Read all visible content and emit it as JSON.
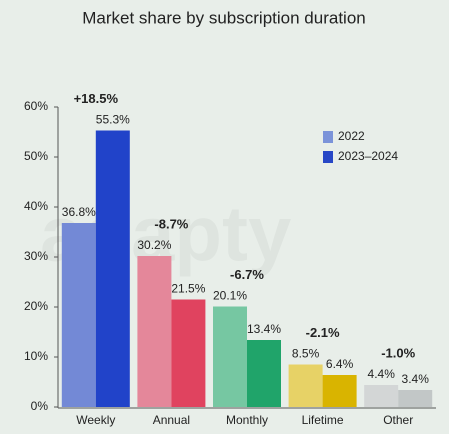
{
  "chart_data": {
    "type": "bar",
    "title": "Market share by subscription duration",
    "watermark": "adapty",
    "categories": [
      "Weekly",
      "Annual",
      "Monthly",
      "Lifetime",
      "Other"
    ],
    "series": [
      {
        "name": "2022",
        "color": "#7b93d9",
        "values": [
          36.8,
          30.2,
          20.1,
          8.5,
          4.4
        ],
        "value_labels": [
          "36.8%",
          "30.2%",
          "20.1%",
          "8.5%",
          "4.4%"
        ],
        "colors": [
          "#7389d6",
          "#e4879a",
          "#76c7a2",
          "#e7d266",
          "#d3d6d6"
        ]
      },
      {
        "name": "2023–2024",
        "color": "#2747c6",
        "values": [
          55.3,
          21.5,
          13.4,
          6.4,
          3.4
        ],
        "value_labels": [
          "55.3%",
          "21.5%",
          "13.4%",
          "6.4%",
          "3.4%"
        ],
        "colors": [
          "#2143c9",
          "#e0435f",
          "#20a46a",
          "#d9b400",
          "#c2c7c7"
        ]
      }
    ],
    "annotations": [
      {
        "text": "+18.5%",
        "color": "#2e9a3a"
      },
      {
        "text": "-8.7%",
        "color": "#d9462c"
      },
      {
        "text": "-6.7%",
        "color": "#d9462c"
      },
      {
        "text": "-2.1%",
        "color": "#d9462c"
      },
      {
        "text": "-1.0%",
        "color": "#d9462c"
      }
    ],
    "ylim": [
      0,
      60
    ],
    "yticks": [
      {
        "value": 0,
        "label": "0%"
      },
      {
        "value": 10,
        "label": "10%"
      },
      {
        "value": 20,
        "label": "20%"
      },
      {
        "value": 30,
        "label": "30%"
      },
      {
        "value": 40,
        "label": "40%"
      },
      {
        "value": 50,
        "label": "50%"
      },
      {
        "value": 60,
        "label": "60%"
      }
    ],
    "legend": "top-right"
  }
}
